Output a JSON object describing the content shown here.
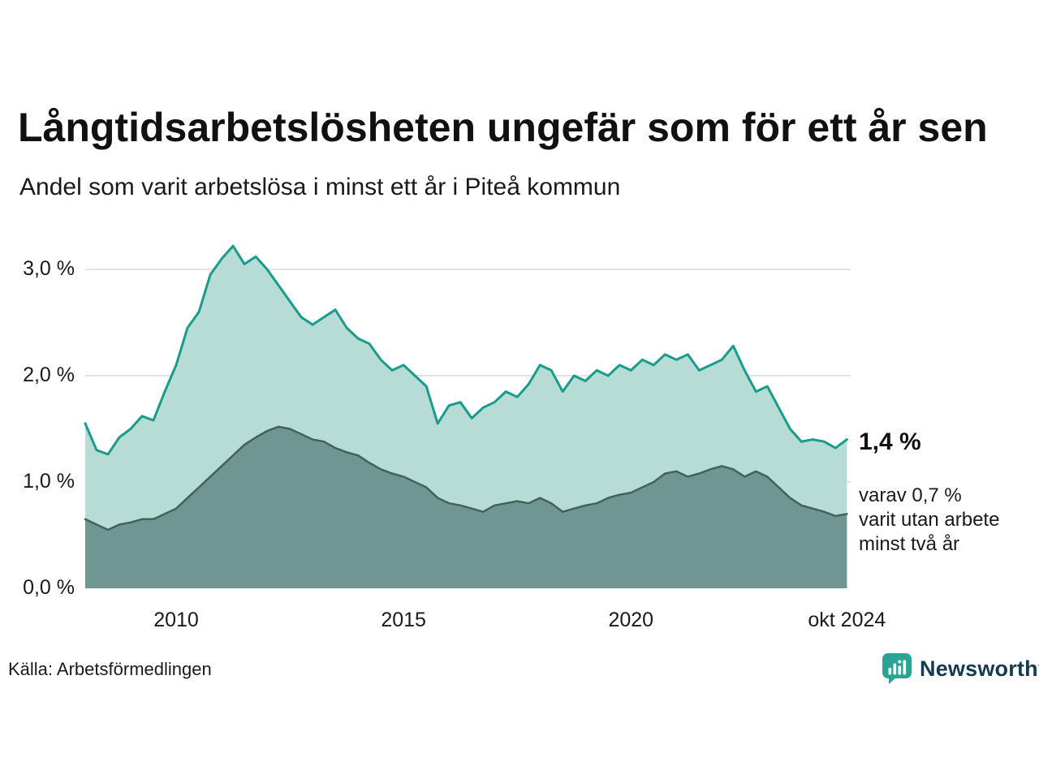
{
  "colors": {
    "grid": "#dadada",
    "light_area_fill": "#b7dcd6",
    "light_area_line": "#189c8b",
    "dark_area_fill": "#6f9690",
    "dark_area_line": "#44615b",
    "brand_icon": "#2aa395",
    "brand_text": "#163a4e"
  },
  "annotation": {
    "value": "1,4 %",
    "lines": [
      "varav 0,7 %",
      "varit utan arbete",
      "minst två år"
    ]
  },
  "footer": {
    "source": "Källa: Arbetsförmedlingen",
    "brand_name": "Newsworthy"
  },
  "chart_data": {
    "type": "area",
    "title": "Långtidsarbetslösheten ungefär som för ett år sen",
    "subtitle": "Andel som varit arbetslösa i minst ett år i Piteå kommun",
    "xlabel": "",
    "ylabel": "",
    "grid": "horizontal",
    "legend": "none",
    "xlim": [
      2008,
      2024.833
    ],
    "ylim": [
      0,
      3.45
    ],
    "y_ticks": [
      {
        "value": 0,
        "label": "0,0 %"
      },
      {
        "value": 1,
        "label": "1,0 %"
      },
      {
        "value": 2,
        "label": "2,0 %"
      },
      {
        "value": 3,
        "label": "3,0 %"
      }
    ],
    "x_ticks": [
      {
        "value": 2010,
        "label": "2010"
      },
      {
        "value": 2015,
        "label": "2015"
      },
      {
        "value": 2020,
        "label": "2020"
      },
      {
        "value": 2024.75,
        "label": "okt 2024"
      }
    ],
    "x": [
      2008,
      2008.25,
      2008.5,
      2008.75,
      2009,
      2009.25,
      2009.5,
      2009.75,
      2010,
      2010.25,
      2010.5,
      2010.75,
      2011,
      2011.25,
      2011.5,
      2011.75,
      2012,
      2012.25,
      2012.5,
      2012.75,
      2013,
      2013.25,
      2013.5,
      2013.75,
      2014,
      2014.25,
      2014.5,
      2014.75,
      2015,
      2015.25,
      2015.5,
      2015.75,
      2016,
      2016.25,
      2016.5,
      2016.75,
      2017,
      2017.25,
      2017.5,
      2017.75,
      2018,
      2018.25,
      2018.5,
      2018.75,
      2019,
      2019.25,
      2019.5,
      2019.75,
      2020,
      2020.25,
      2020.5,
      2020.75,
      2021,
      2021.25,
      2021.5,
      2021.75,
      2022,
      2022.25,
      2022.5,
      2022.75,
      2023,
      2023.25,
      2023.5,
      2023.75,
      2024,
      2024.25,
      2024.5,
      2024.75
    ],
    "series": [
      {
        "name": "Arbetslösa minst ett år",
        "fill": "#b7dcd6",
        "line": "#189c8b",
        "latest_label": "1,4 %",
        "values": [
          1.55,
          1.3,
          1.26,
          1.42,
          1.5,
          1.62,
          1.58,
          1.85,
          2.1,
          2.45,
          2.6,
          2.95,
          3.1,
          3.22,
          3.05,
          3.12,
          3.0,
          2.85,
          2.7,
          2.55,
          2.48,
          2.55,
          2.62,
          2.45,
          2.35,
          2.3,
          2.15,
          2.05,
          2.1,
          2.0,
          1.9,
          1.55,
          1.72,
          1.75,
          1.6,
          1.7,
          1.75,
          1.85,
          1.8,
          1.92,
          2.1,
          2.05,
          1.85,
          2.0,
          1.95,
          2.05,
          2.0,
          2.1,
          2.05,
          2.15,
          2.1,
          2.2,
          2.15,
          2.2,
          2.05,
          2.1,
          2.15,
          2.28,
          2.05,
          1.85,
          1.9,
          1.7,
          1.5,
          1.38,
          1.4,
          1.38,
          1.32,
          1.4
        ]
      },
      {
        "name": "Arbetslösa minst två år",
        "fill": "#6f9690",
        "line": "#44615b",
        "latest_label": "0,7 %",
        "values": [
          0.65,
          0.6,
          0.55,
          0.6,
          0.62,
          0.65,
          0.65,
          0.7,
          0.75,
          0.85,
          0.95,
          1.05,
          1.15,
          1.25,
          1.35,
          1.42,
          1.48,
          1.52,
          1.5,
          1.45,
          1.4,
          1.38,
          1.32,
          1.28,
          1.25,
          1.18,
          1.12,
          1.08,
          1.05,
          1.0,
          0.95,
          0.85,
          0.8,
          0.78,
          0.75,
          0.72,
          0.78,
          0.8,
          0.82,
          0.8,
          0.85,
          0.8,
          0.72,
          0.75,
          0.78,
          0.8,
          0.85,
          0.88,
          0.9,
          0.95,
          1.0,
          1.08,
          1.1,
          1.05,
          1.08,
          1.12,
          1.15,
          1.12,
          1.05,
          1.1,
          1.05,
          0.95,
          0.85,
          0.78,
          0.75,
          0.72,
          0.68,
          0.7
        ]
      }
    ]
  }
}
